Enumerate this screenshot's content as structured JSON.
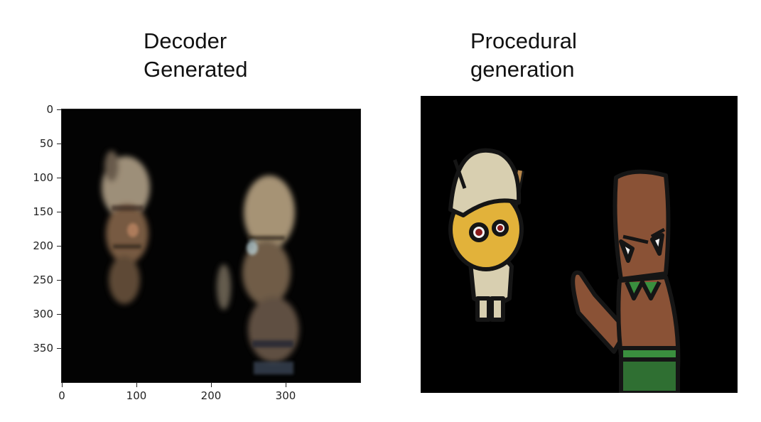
{
  "titles": {
    "left": "Decoder\nGenerated",
    "right": "Procedural\ngeneration"
  },
  "left_plot": {
    "y_ticks": [
      "0",
      "50",
      "100",
      "150",
      "200",
      "250",
      "300",
      "350"
    ],
    "x_ticks": [
      "0",
      "100",
      "200",
      "300"
    ]
  },
  "colors": {
    "background": "#ffffff",
    "plot_bg": "#030303",
    "bone": "#d8cfb0",
    "skin_yellow": "#e2b23a",
    "wood_brown": "#8a5236",
    "leaf_green": "#3a8f3e"
  },
  "icons": {
    "left_image": "blurry-goblin-sprites",
    "right_image": "cartoon-goblin-sprites"
  }
}
